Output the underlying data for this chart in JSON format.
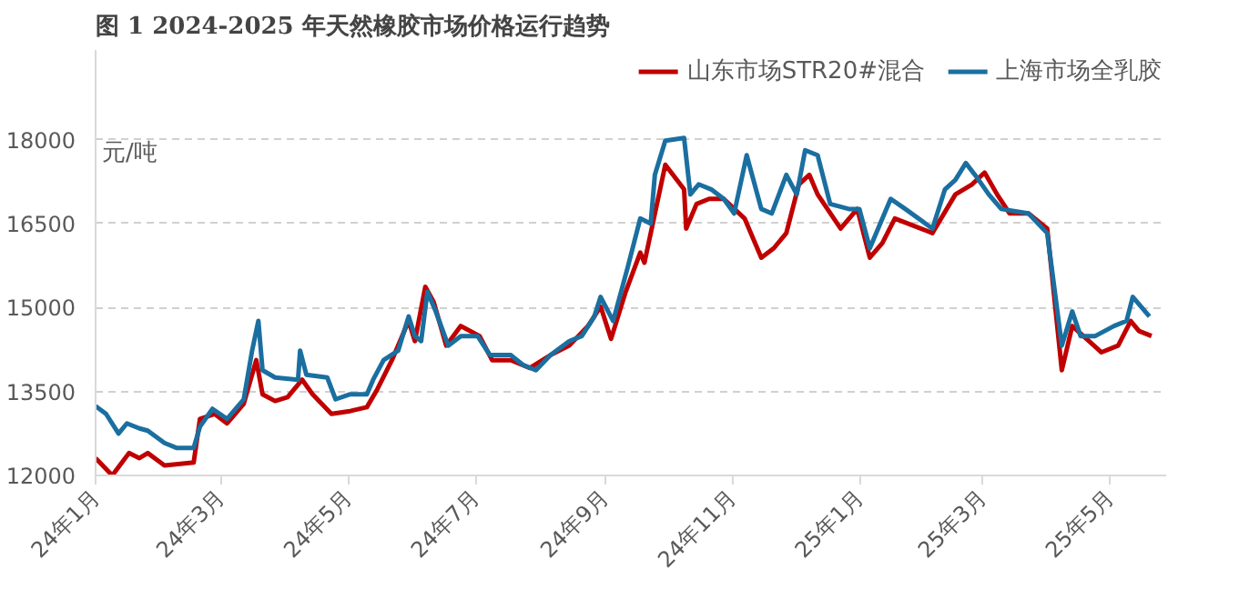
{
  "chart_data": {
    "type": "line",
    "title": "图 1 2024-2025 年天然橡胶市场价格运行趋势",
    "ylabel": "元/吨",
    "xlim": [
      "2024-01-01",
      "2025-05-28"
    ],
    "xticks": [
      {
        "value": "2024-01",
        "label": "24年1月"
      },
      {
        "value": "2024-03",
        "label": "24年3月"
      },
      {
        "value": "2024-05",
        "label": "24年5月"
      },
      {
        "value": "2024-07",
        "label": "24年7月"
      },
      {
        "value": "2024-09",
        "label": "24年9月"
      },
      {
        "value": "2024-11",
        "label": "24年11月"
      },
      {
        "value": "2025-01",
        "label": "25年1月"
      },
      {
        "value": "2025-03",
        "label": "25年3月"
      },
      {
        "value": "2025-05",
        "label": "25年5月"
      }
    ],
    "ylim": [
      12000,
      19600
    ],
    "yticks": [
      12000,
      13500,
      15000,
      16500,
      18000
    ],
    "grid": "y",
    "legend": "top right",
    "line_style": "solid",
    "marker": "none",
    "series": [
      {
        "name": "山东市场STR20#混合",
        "color": "#c00000",
        "x": [
          "2024-01-01",
          "2024-01-09",
          "2024-01-17",
          "2024-01-22",
          "2024-01-26",
          "2024-02-03",
          "2024-02-17",
          "2024-02-20",
          "2024-02-27",
          "2024-03-04",
          "2024-03-12",
          "2024-03-18",
          "2024-03-21",
          "2024-03-27",
          "2024-04-02",
          "2024-04-09",
          "2024-04-14",
          "2024-04-23",
          "2024-05-02",
          "2024-05-10",
          "2024-05-15",
          "2024-05-22",
          "2024-05-30",
          "2024-06-02",
          "2024-06-07",
          "2024-06-11",
          "2024-06-17",
          "2024-06-24",
          "2024-07-03",
          "2024-07-09",
          "2024-07-18",
          "2024-07-27",
          "2024-08-06",
          "2024-08-15",
          "2024-08-24",
          "2024-08-30",
          "2024-09-04",
          "2024-09-11",
          "2024-09-18",
          "2024-09-20",
          "2024-09-30",
          "2024-10-09",
          "2024-10-10",
          "2024-10-15",
          "2024-10-21",
          "2024-10-28",
          "2024-11-07",
          "2024-11-15",
          "2024-11-21",
          "2024-11-27",
          "2024-12-03",
          "2024-12-08",
          "2024-12-12",
          "2024-12-23",
          "2024-12-31",
          "2025-01-06",
          "2025-01-12",
          "2025-01-18",
          "2025-02-05",
          "2025-02-16",
          "2025-02-24",
          "2025-03-02",
          "2025-03-08",
          "2025-03-14",
          "2025-03-23",
          "2025-04-01",
          "2025-04-08",
          "2025-04-13",
          "2025-04-21",
          "2025-04-27",
          "2025-05-05",
          "2025-05-11",
          "2025-05-15",
          "2025-05-21"
        ],
        "values": [
          12310,
          12000,
          12400,
          12310,
          12400,
          12180,
          12230,
          13010,
          13100,
          12930,
          13280,
          14060,
          13450,
          13330,
          13400,
          13710,
          13450,
          13100,
          13150,
          13220,
          13540,
          14060,
          14760,
          14400,
          15370,
          15100,
          14320,
          14670,
          14490,
          14060,
          14060,
          13920,
          14150,
          14320,
          14670,
          15020,
          14440,
          15280,
          15980,
          15800,
          17550,
          17110,
          16410,
          16850,
          16940,
          16940,
          16590,
          15890,
          16060,
          16330,
          17200,
          17370,
          17020,
          16410,
          16760,
          15890,
          16150,
          16590,
          16330,
          17020,
          17200,
          17410,
          17020,
          16680,
          16680,
          16410,
          13880,
          14670,
          14400,
          14200,
          14320,
          14760,
          14580,
          14490
        ]
      },
      {
        "name": "上海市场全乳胶",
        "color": "#1a6fa0",
        "x": [
          "2024-01-01",
          "2024-01-06",
          "2024-01-12",
          "2024-01-16",
          "2024-01-22",
          "2024-01-26",
          "2024-02-03",
          "2024-02-09",
          "2024-02-17",
          "2024-02-20",
          "2024-02-26",
          "2024-03-04",
          "2024-03-12",
          "2024-03-16",
          "2024-03-19",
          "2024-03-21",
          "2024-03-27",
          "2024-04-07",
          "2024-04-08",
          "2024-04-11",
          "2024-04-21",
          "2024-04-25",
          "2024-05-02",
          "2024-05-10",
          "2024-05-13",
          "2024-05-18",
          "2024-05-25",
          "2024-05-30",
          "2024-06-02",
          "2024-06-05",
          "2024-06-08",
          "2024-06-12",
          "2024-06-18",
          "2024-06-24",
          "2024-07-02",
          "2024-07-08",
          "2024-07-18",
          "2024-07-24",
          "2024-07-30",
          "2024-08-06",
          "2024-08-15",
          "2024-08-21",
          "2024-08-27",
          "2024-08-30",
          "2024-09-05",
          "2024-09-12",
          "2024-09-18",
          "2024-09-23",
          "2024-09-25",
          "2024-09-30",
          "2024-10-09",
          "2024-10-12",
          "2024-10-16",
          "2024-10-22",
          "2024-10-28",
          "2024-11-02",
          "2024-11-08",
          "2024-11-15",
          "2024-11-20",
          "2024-11-27",
          "2024-12-02",
          "2024-12-06",
          "2024-12-12",
          "2024-12-18",
          "2024-12-27",
          "2025-01-01",
          "2025-01-06",
          "2025-01-16",
          "2025-01-23",
          "2025-02-05",
          "2025-02-11",
          "2025-02-16",
          "2025-02-21",
          "2025-02-26",
          "2025-03-04",
          "2025-03-10",
          "2025-03-23",
          "2025-04-01",
          "2025-04-08",
          "2025-04-13",
          "2025-04-17",
          "2025-04-24",
          "2025-05-03",
          "2025-05-09",
          "2025-05-12",
          "2025-05-20"
        ],
        "values": [
          13240,
          13100,
          12750,
          12930,
          12840,
          12800,
          12580,
          12490,
          12490,
          12870,
          13190,
          13010,
          13360,
          14230,
          14760,
          13880,
          13750,
          13710,
          14230,
          13800,
          13750,
          13360,
          13450,
          13450,
          13710,
          14060,
          14230,
          14840,
          14490,
          14400,
          15280,
          14930,
          14320,
          14490,
          14490,
          14150,
          14150,
          13970,
          13880,
          14150,
          14400,
          14490,
          14840,
          15190,
          14760,
          15720,
          16590,
          16500,
          17370,
          17980,
          18030,
          17020,
          17200,
          17110,
          16940,
          16680,
          17720,
          16760,
          16680,
          17370,
          17020,
          17810,
          17720,
          16850,
          16760,
          16760,
          16060,
          16940,
          16760,
          16410,
          17110,
          17280,
          17580,
          17340,
          17020,
          16760,
          16680,
          16330,
          14320,
          14930,
          14490,
          14490,
          14670,
          14760,
          15190,
          14840
        ]
      }
    ]
  }
}
